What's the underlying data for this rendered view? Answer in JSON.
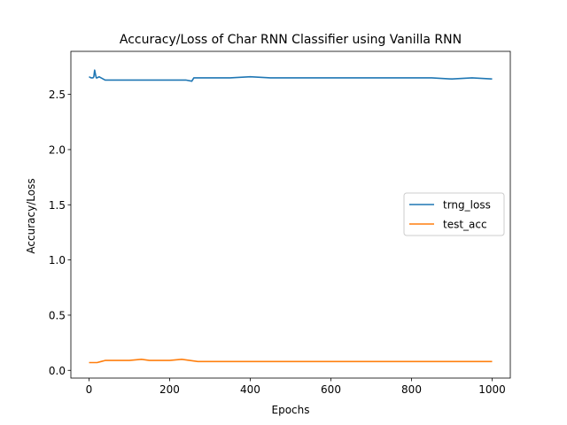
{
  "chart_data": {
    "type": "line",
    "title": "Accuracy/Loss of Char RNN Classifier using Vanilla RNN",
    "xlabel": "Epochs",
    "ylabel": "Accuracy/Loss",
    "xlim": [
      -45,
      1045
    ],
    "ylim": [
      -0.07,
      2.89
    ],
    "xticks": [
      0,
      200,
      400,
      600,
      800,
      1000
    ],
    "yticks": [
      0.0,
      0.5,
      1.0,
      1.5,
      2.0,
      2.5
    ],
    "ytick_labels": [
      "0.0",
      "0.5",
      "1.0",
      "1.5",
      "2.0",
      "2.5"
    ],
    "grid": false,
    "legend_position": "center-right",
    "series": [
      {
        "name": "trng_loss",
        "color": "#1f77b4",
        "x": [
          0,
          5,
          10,
          12,
          14,
          16,
          18,
          20,
          25,
          30,
          40,
          50,
          60,
          80,
          100,
          120,
          150,
          200,
          240,
          255,
          260,
          270,
          300,
          350,
          400,
          450,
          500,
          550,
          600,
          650,
          700,
          750,
          800,
          850,
          900,
          950,
          1000
        ],
        "y": [
          2.66,
          2.65,
          2.65,
          2.66,
          2.72,
          2.68,
          2.65,
          2.65,
          2.66,
          2.65,
          2.63,
          2.63,
          2.63,
          2.63,
          2.63,
          2.63,
          2.63,
          2.63,
          2.63,
          2.62,
          2.65,
          2.65,
          2.65,
          2.65,
          2.66,
          2.65,
          2.65,
          2.65,
          2.65,
          2.65,
          2.65,
          2.65,
          2.65,
          2.65,
          2.64,
          2.65,
          2.64
        ]
      },
      {
        "name": "test_acc",
        "color": "#ff7f0e",
        "x": [
          0,
          10,
          20,
          30,
          40,
          50,
          70,
          100,
          130,
          150,
          170,
          200,
          230,
          250,
          270,
          300,
          350,
          400,
          450,
          500,
          550,
          600,
          650,
          700,
          750,
          800,
          850,
          900,
          950,
          1000
        ],
        "y": [
          0.07,
          0.07,
          0.07,
          0.08,
          0.09,
          0.09,
          0.09,
          0.09,
          0.1,
          0.09,
          0.09,
          0.09,
          0.1,
          0.09,
          0.08,
          0.08,
          0.08,
          0.08,
          0.08,
          0.08,
          0.08,
          0.08,
          0.08,
          0.08,
          0.08,
          0.08,
          0.08,
          0.08,
          0.08,
          0.08
        ]
      }
    ]
  }
}
